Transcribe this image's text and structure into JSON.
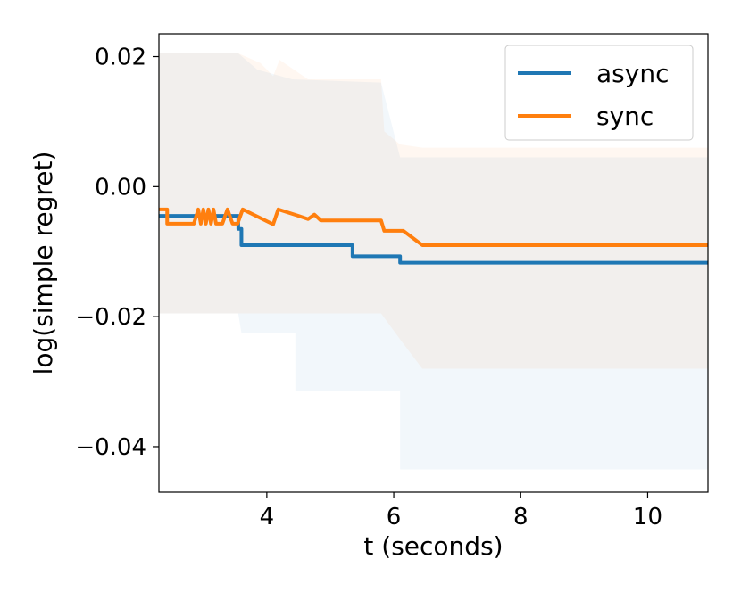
{
  "chart_data": {
    "type": "line",
    "xlabel": "t (seconds)",
    "ylabel": "log(simple regret)",
    "xlim": [
      2.3,
      10.95
    ],
    "ylim": [
      -0.047,
      0.0235
    ],
    "x_ticks": [
      4,
      6,
      8,
      10
    ],
    "x_tick_labels": [
      "4",
      "6",
      "8",
      "10"
    ],
    "y_ticks": [
      0.02,
      0.0,
      -0.02,
      -0.04
    ],
    "y_tick_labels": [
      "0.02",
      "0.00",
      "−0.02",
      "−0.04"
    ],
    "grid": false,
    "legend": {
      "position": "top-right",
      "entries": [
        "async",
        "sync"
      ]
    },
    "series": [
      {
        "name": "async",
        "color": "#1f77b4",
        "band_color": "#1f77b4",
        "points": [
          [
            2.3,
            -0.0045
          ],
          [
            3.55,
            -0.0045
          ],
          [
            3.55,
            -0.0065
          ],
          [
            3.6,
            -0.0065
          ],
          [
            3.6,
            -0.009
          ],
          [
            5.35,
            -0.009
          ],
          [
            5.35,
            -0.0107
          ],
          [
            6.1,
            -0.0107
          ],
          [
            6.1,
            -0.0117
          ],
          [
            10.95,
            -0.0117
          ]
        ],
        "band_upper": [
          [
            2.3,
            0.0205
          ],
          [
            3.55,
            0.0205
          ],
          [
            3.55,
            0.0205
          ],
          [
            3.85,
            0.018
          ],
          [
            4.4,
            0.0165
          ],
          [
            5.8,
            0.016
          ],
          [
            6.1,
            0.0045
          ],
          [
            10.95,
            0.0045
          ]
        ],
        "band_lower": [
          [
            2.3,
            -0.0195
          ],
          [
            3.55,
            -0.0195
          ],
          [
            3.6,
            -0.0225
          ],
          [
            4.45,
            -0.0225
          ],
          [
            4.45,
            -0.0315
          ],
          [
            6.1,
            -0.0315
          ],
          [
            6.1,
            -0.0435
          ],
          [
            10.95,
            -0.0435
          ]
        ]
      },
      {
        "name": "sync",
        "color": "#ff7f0e",
        "band_color": "#ff7f0e",
        "points": [
          [
            2.3,
            -0.0035
          ],
          [
            2.43,
            -0.0035
          ],
          [
            2.43,
            -0.0057
          ],
          [
            2.85,
            -0.0057
          ],
          [
            2.92,
            -0.0035
          ],
          [
            2.96,
            -0.0057
          ],
          [
            3.0,
            -0.0035
          ],
          [
            3.04,
            -0.0057
          ],
          [
            3.08,
            -0.0035
          ],
          [
            3.12,
            -0.0057
          ],
          [
            3.16,
            -0.0035
          ],
          [
            3.2,
            -0.0057
          ],
          [
            3.3,
            -0.0057
          ],
          [
            3.38,
            -0.0035
          ],
          [
            3.46,
            -0.0057
          ],
          [
            3.54,
            -0.0057
          ],
          [
            3.62,
            -0.0035
          ],
          [
            4.1,
            -0.0058
          ],
          [
            4.18,
            -0.0035
          ],
          [
            4.5,
            -0.0045
          ],
          [
            4.65,
            -0.005
          ],
          [
            4.75,
            -0.0043
          ],
          [
            4.85,
            -0.0052
          ],
          [
            5.8,
            -0.0052
          ],
          [
            5.85,
            -0.0068
          ],
          [
            6.15,
            -0.0068
          ],
          [
            6.45,
            -0.009
          ],
          [
            10.95,
            -0.009
          ]
        ],
        "band_upper": [
          [
            2.3,
            0.0205
          ],
          [
            3.55,
            0.0205
          ],
          [
            3.9,
            0.019
          ],
          [
            4.1,
            0.017
          ],
          [
            4.2,
            0.0195
          ],
          [
            4.65,
            0.0165
          ],
          [
            5.8,
            0.0165
          ],
          [
            5.85,
            0.0085
          ],
          [
            6.1,
            0.0065
          ],
          [
            6.45,
            0.006
          ],
          [
            10.95,
            0.006
          ]
        ],
        "band_lower": [
          [
            2.3,
            -0.0195
          ],
          [
            3.55,
            -0.0195
          ],
          [
            4.1,
            -0.0195
          ],
          [
            5.8,
            -0.0195
          ],
          [
            6.1,
            -0.0235
          ],
          [
            6.45,
            -0.028
          ],
          [
            10.95,
            -0.028
          ]
        ]
      }
    ]
  }
}
